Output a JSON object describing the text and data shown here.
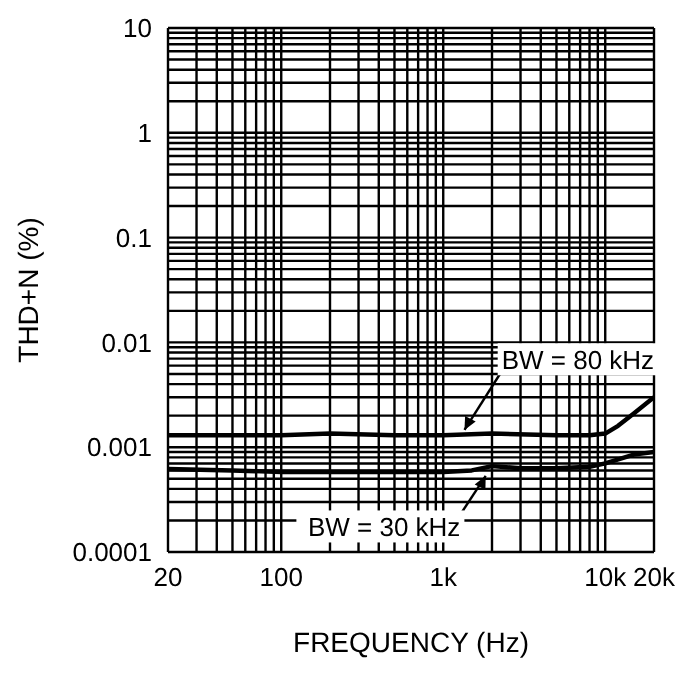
{
  "chart_data": {
    "type": "line",
    "xlabel": "FREQUENCY (Hz)",
    "ylabel": "THD+N (%)",
    "log": "xy",
    "grid": true,
    "legend": false,
    "marker": "none",
    "line_style": "solid",
    "xlim": [
      20,
      20000
    ],
    "ylim": [
      0.0001,
      10
    ],
    "xticks": [
      20,
      {
        "value": 30,
        "label": null
      },
      {
        "value": 40,
        "label": null
      },
      {
        "value": 50,
        "label": null
      },
      {
        "value": 60,
        "label": null
      },
      {
        "value": 70,
        "label": null
      },
      {
        "value": 80,
        "label": null
      },
      {
        "value": 90,
        "label": null
      },
      100,
      {
        "value": 200,
        "label": null
      },
      {
        "value": 300,
        "label": null
      },
      {
        "value": 400,
        "label": null
      },
      {
        "value": 500,
        "label": null
      },
      {
        "value": 600,
        "label": null
      },
      {
        "value": 700,
        "label": null
      },
      {
        "value": 800,
        "label": null
      },
      {
        "value": 900,
        "label": null
      },
      {
        "value": 1000,
        "label": "1k"
      },
      {
        "value": 2000,
        "label": null
      },
      {
        "value": 3000,
        "label": null
      },
      {
        "value": 4000,
        "label": null
      },
      {
        "value": 5000,
        "label": null
      },
      {
        "value": 6000,
        "label": null
      },
      {
        "value": 7000,
        "label": null
      },
      {
        "value": 8000,
        "label": null
      },
      {
        "value": 9000,
        "label": null
      },
      {
        "value": 10000,
        "label": "10k"
      },
      {
        "value": 20000,
        "label": "20k"
      }
    ],
    "yticks": [
      0.0001,
      {
        "value": 0.0002,
        "label": null
      },
      {
        "value": 0.0003,
        "label": null
      },
      {
        "value": 0.0004,
        "label": null
      },
      {
        "value": 0.0005,
        "label": null
      },
      {
        "value": 0.0006,
        "label": null
      },
      {
        "value": 0.0007,
        "label": null
      },
      {
        "value": 0.0008,
        "label": null
      },
      {
        "value": 0.0009,
        "label": null
      },
      0.001,
      {
        "value": 0.002,
        "label": null
      },
      {
        "value": 0.003,
        "label": null
      },
      {
        "value": 0.004,
        "label": null
      },
      {
        "value": 0.005,
        "label": null
      },
      {
        "value": 0.006,
        "label": null
      },
      {
        "value": 0.007,
        "label": null
      },
      {
        "value": 0.008,
        "label": null
      },
      {
        "value": 0.009,
        "label": null
      },
      0.01,
      {
        "value": 0.02,
        "label": null
      },
      {
        "value": 0.03,
        "label": null
      },
      {
        "value": 0.04,
        "label": null
      },
      {
        "value": 0.05,
        "label": null
      },
      {
        "value": 0.06,
        "label": null
      },
      {
        "value": 0.07,
        "label": null
      },
      {
        "value": 0.08,
        "label": null
      },
      {
        "value": 0.09,
        "label": null
      },
      0.1,
      {
        "value": 0.2,
        "label": null
      },
      {
        "value": 0.3,
        "label": null
      },
      {
        "value": 0.4,
        "label": null
      },
      {
        "value": 0.5,
        "label": null
      },
      {
        "value": 0.6,
        "label": null
      },
      {
        "value": 0.7,
        "label": null
      },
      {
        "value": 0.8,
        "label": null
      },
      {
        "value": 0.9,
        "label": null
      },
      1,
      {
        "value": 2,
        "label": null
      },
      {
        "value": 3,
        "label": null
      },
      {
        "value": 4,
        "label": null
      },
      {
        "value": 5,
        "label": null
      },
      {
        "value": 6,
        "label": null
      },
      {
        "value": 7,
        "label": null
      },
      {
        "value": 8,
        "label": null
      },
      {
        "value": 9,
        "label": null
      },
      10
    ],
    "series": [
      {
        "color": "#000000",
        "x": [
          20,
          50,
          100,
          200,
          500,
          1000,
          2000,
          5000,
          8000,
          10000,
          12000,
          15000,
          20000
        ],
        "values": [
          0.0013,
          0.0013,
          0.0013,
          0.00135,
          0.0013,
          0.0013,
          0.00135,
          0.0013,
          0.0013,
          0.00135,
          0.0016,
          0.0021,
          0.003
        ]
      },
      {
        "color": "#000000",
        "x": [
          20,
          50,
          100,
          200,
          500,
          1000,
          1500,
          2000,
          3000,
          5000,
          8000,
          10000,
          15000,
          20000
        ],
        "values": [
          0.00062,
          0.0006,
          0.00058,
          0.00058,
          0.00058,
          0.00058,
          0.0006,
          0.00066,
          0.00063,
          0.00063,
          0.00065,
          0.0007,
          0.00085,
          0.0009
        ]
      }
    ],
    "annotations": [
      {
        "text": "BW = 80 kHz",
        "x": 1300,
        "y": 0.0013
      },
      {
        "text": "BW = 30 kHz",
        "x": 1900,
        "y": 0.0006
      }
    ]
  }
}
